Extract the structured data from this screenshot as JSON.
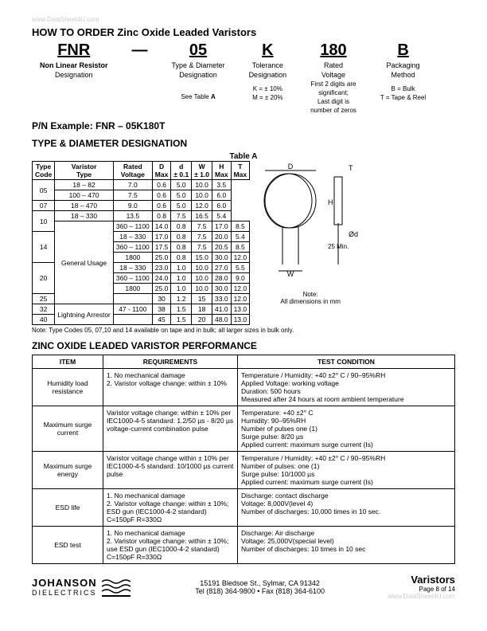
{
  "watermark_top": "www.DataSheet4U.com",
  "title_main": "HOW TO ORDER Zinc Oxide Leaded Varistors",
  "order": {
    "c1": {
      "big": "FNR",
      "line1": "Non Linear Resistor",
      "line2": "Designation"
    },
    "dash": "—",
    "c2": {
      "big": "05",
      "line1": "Type & Diameter",
      "line2": "Designation",
      "sub": "See Table A"
    },
    "c3": {
      "big": "K",
      "line1": "Tolerance",
      "line2": "Designation",
      "sub1": "K = ± 10%",
      "sub2": "M = ± 20%"
    },
    "c4": {
      "big": "180",
      "line1": "Rated",
      "line2": "Voltage",
      "sub1": "First 2 digits are",
      "sub2": "significant;",
      "sub3": "Last digit is",
      "sub4": "number of zeros"
    },
    "c5": {
      "big": "B",
      "line1": "Packaging",
      "line2": "Method",
      "sub1": "B = Bulk",
      "sub2": "T = Tape & Reel"
    }
  },
  "pn_label": "P/N Example:  FNR – 05K180T",
  "type_diam_title": "TYPE & DIAMETER DESIGNATION",
  "tableA_caption": "Table A",
  "tableA": {
    "headers": [
      "Type Code",
      "Varistor Type",
      "Rated Voltage",
      "D Max",
      "d ± 0.1",
      "W ± 1.0",
      "H Max",
      "T Max"
    ],
    "rows": [
      [
        "05",
        "",
        "18 – 82",
        "7.0",
        "0.6",
        "5.0",
        "10.0",
        "3.5"
      ],
      [
        "",
        "",
        "100 – 470",
        "7.5",
        "0.6",
        "5.0",
        "10.0",
        "6.0"
      ],
      [
        "07",
        "",
        "18 – 470",
        "9.0",
        "0.6",
        "5.0",
        "12.0",
        "6.0"
      ],
      [
        "10",
        "",
        "18 – 330",
        "13.5",
        "0.8",
        "7.5",
        "16.5",
        "5.4"
      ],
      [
        "",
        "General Usage",
        "360 – 1100",
        "14.0",
        "0.8",
        "7.5",
        "17.0",
        "8.5"
      ],
      [
        "14",
        "",
        "18 – 330",
        "17.0",
        "0.8",
        "7.5",
        "20.0",
        "5.4"
      ],
      [
        "",
        "",
        "360 – 1100",
        "17.5",
        "0.8",
        "7.5",
        "20.5",
        "8.5"
      ],
      [
        "",
        "",
        "1800",
        "25.0",
        "0.8",
        "15.0",
        "30.0",
        "12.0"
      ],
      [
        "20",
        "",
        "18 – 330",
        "23.0",
        "1.0",
        "10.0",
        "27.0",
        "5.5"
      ],
      [
        "",
        "",
        "360 – 1100",
        "24.0",
        "1.0",
        "10.0",
        "28.0",
        "9.0"
      ],
      [
        "",
        "",
        "1800",
        "25.0",
        "1.0",
        "10.0",
        "30.0",
        "12.0"
      ],
      [
        "25",
        "",
        "",
        "30",
        "1.2",
        "15",
        "33.0",
        "12.0"
      ],
      [
        "32",
        "Lightning Arrestor",
        "47 - 1100",
        "38",
        "1.5",
        "18",
        "41.0",
        "13.0"
      ],
      [
        "40",
        "",
        "",
        "45",
        "1.5",
        "20",
        "48.0",
        "13.0"
      ]
    ],
    "dim_note": "Note:\nAll dimensions in mm",
    "footnote": "Note: Type Codes 05, 07,10 and 14 available on tape and in bulk; all larger sizes in bulk only."
  },
  "perf_title": "ZINC OXIDE LEADED VARISTOR PERFORMANCE",
  "perf": {
    "headers": [
      "ITEM",
      "REQUIREMENTS",
      "TEST CONDITION"
    ],
    "rows": [
      {
        "item": "Humidity load resistance",
        "req": "1. No mechanical damage\n2. Varistor voltage change: within ± 10%",
        "cond": "Temperature / Humidity:     +40 ±2° C / 90–95%RH\nApplied Voltage:                 working voltage\nDuration:                             500 hours\nMeasured after 24 hours at room ambient temperature"
      },
      {
        "item": "Maximum surge current",
        "req": "Varistor voltage change: within ± 10% per IEC1000-4-5 standard: 1.2/50 µs - 8/20 µs voltage-current combination pulse",
        "cond": "Temperature:                     +40 ±2° C\nHumidity:                            90–95%RH\nNumber of pulses              one (1)\nSurge pulse:                        8/20 µs\nApplied current:                 maximum surge current (Is)"
      },
      {
        "item": "Maximum surge energy",
        "req": "Varistor voltage change within ± 10% per IEC1000-4-5 standard: 10/1000 µs current pulse",
        "cond": "Temperature / Humidity:    +40 ±2° C / 90–95%RH\nNumber of pulses:              one (1)\nSurge pulse:                        10/1000 µs\nApplied current:                 maximum surge current (Is)"
      },
      {
        "item": "ESD life",
        "req": "1. No mechanical damage\n2. Varistor voltage change: within ± 10%; ESD gun (IEC1000-4-2 standard) C=150pF R=330Ω",
        "cond": "Discharge:                           contact discharge\nVoltage:                               8,000V(level 4)\nNumber of discharges:       10,000 times in 10 sec."
      },
      {
        "item": "ESD test",
        "req": "1. No mechanical damage\n2. Varistor voltage change: within ± 10%; use ESD gun (IEC1000-4-2 standard) C=150pF R=330Ω",
        "cond": "Discharge:                           Air discharge\nVoltage:                               25,000V(special level)\nNumber of discharges:       10 times in 10 sec"
      }
    ]
  },
  "footer": {
    "company1": "JOHANSON",
    "company2": "DIELECTRICS",
    "addr": "15191 Bledsoe St., Sylmar, CA 91342",
    "tel": "Tel (818) 364-9800 • Fax (818) 364-6100",
    "right1": "Varistors",
    "right2": "Page 8 of  14",
    "watermark": "www.DataSheet4U.com"
  }
}
